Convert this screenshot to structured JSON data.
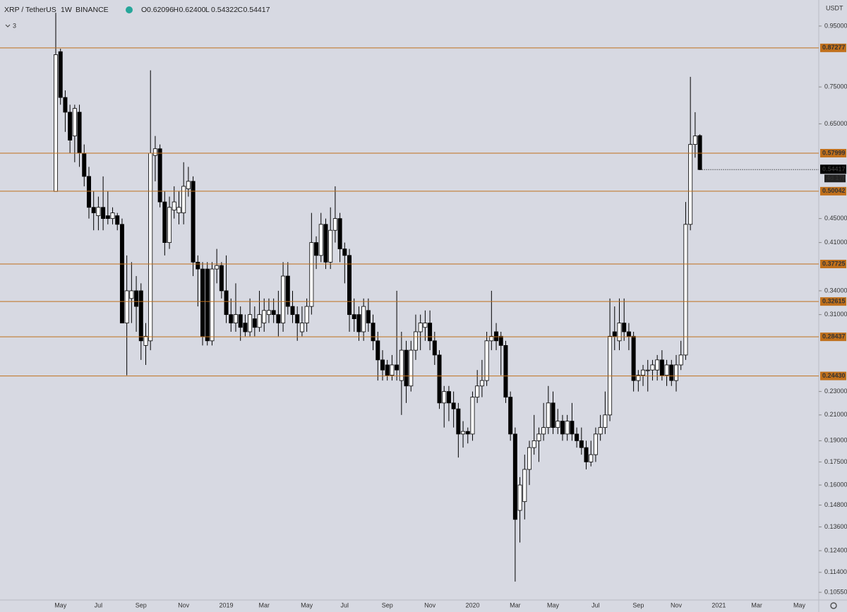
{
  "chart_data": {
    "type": "candlestick",
    "title": "XRP / TetherUS",
    "interval": "1W",
    "exchange": "BINANCE",
    "indicator_count": 3,
    "ohlc_labels": [
      "O",
      "H",
      "L",
      "C"
    ],
    "ohlc_value_labels": [
      "0.62096",
      "0.62400",
      "0.54322",
      "0.54417"
    ],
    "currency": "USDT",
    "countdown": "4d 17h",
    "log_scale": true,
    "up_color": "#ffffff",
    "down_color": "#000000",
    "level_color": "#c0701c",
    "ylim": [
      0.1024,
      1.051
    ],
    "yticks": [
      {
        "value": 0.95,
        "label": "0.95000"
      },
      {
        "value": 0.75,
        "label": "0.75000"
      },
      {
        "value": 0.65,
        "label": "0.65000"
      },
      {
        "value": 0.45,
        "label": "0.45000"
      },
      {
        "value": 0.41,
        "label": "0.41000"
      },
      {
        "value": 0.34,
        "label": "0.34000"
      },
      {
        "value": 0.31,
        "label": "0.31000"
      },
      {
        "value": 0.23,
        "label": "0.23000"
      },
      {
        "value": 0.21,
        "label": "0.21000"
      },
      {
        "value": 0.19,
        "label": "0.19000"
      },
      {
        "value": 0.175,
        "label": "0.17500"
      },
      {
        "value": 0.16,
        "label": "0.16000"
      },
      {
        "value": 0.148,
        "label": "0.14800"
      },
      {
        "value": 0.136,
        "label": "0.13600"
      },
      {
        "value": 0.124,
        "label": "0.12400"
      },
      {
        "value": 0.114,
        "label": "0.11400"
      },
      {
        "value": 0.1055,
        "label": "0.10550"
      }
    ],
    "levels": [
      0.87277,
      0.57999,
      0.50042,
      0.37725,
      0.32615,
      0.28437,
      {
        "value": 0.2443,
        "label": "0.24430"
      }
    ],
    "categories": [
      null,
      "May",
      null,
      null,
      null,
      null,
      null,
      null,
      null,
      "Jul",
      null,
      null,
      null,
      null,
      null,
      null,
      null,
      null,
      "Sep",
      null,
      null,
      null,
      null,
      null,
      null,
      null,
      null,
      "Nov",
      null,
      null,
      null,
      null,
      null,
      null,
      null,
      null,
      "2019",
      null,
      null,
      null,
      null,
      null,
      null,
      null,
      "Mar",
      null,
      null,
      null,
      null,
      null,
      null,
      null,
      null,
      "May",
      null,
      null,
      null,
      null,
      null,
      null,
      null,
      "Jul",
      null,
      null,
      null,
      null,
      null,
      null,
      null,
      null,
      "Sep",
      null,
      null,
      null,
      null,
      null,
      null,
      null,
      null,
      "Nov",
      null,
      null,
      null,
      null,
      null,
      null,
      null,
      null,
      "2020",
      null,
      null,
      null,
      null,
      null,
      null,
      null,
      null,
      "Mar",
      null,
      null,
      null,
      null,
      null,
      null,
      null,
      "May",
      null,
      null,
      null,
      null,
      null,
      null,
      null,
      null,
      "Jul",
      null,
      null,
      null,
      null,
      null,
      null,
      null,
      null,
      "Sep",
      null,
      null,
      null,
      null,
      null,
      null,
      null,
      "Nov",
      null,
      null,
      null,
      null,
      null,
      null,
      null,
      null,
      "2021",
      null,
      null,
      null,
      null,
      null,
      null,
      null,
      "Mar",
      null,
      null,
      null,
      null,
      null,
      null,
      null,
      null,
      "May",
      null,
      null
    ],
    "open": [
      0.5,
      0.86,
      0.72,
      0.68,
      0.62,
      0.68,
      0.58,
      0.53,
      0.47,
      0.455,
      0.47,
      0.455,
      0.45,
      0.455,
      0.44,
      0.3,
      0.33,
      0.34,
      0.34,
      0.275,
      0.28,
      0.575,
      0.59,
      0.48,
      0.41,
      0.465,
      0.46,
      0.46,
      0.505,
      0.52,
      0.38,
      0.37,
      0.37,
      0.28,
      0.37,
      0.375,
      0.34,
      0.31,
      0.3,
      0.31,
      0.3,
      0.29,
      0.305,
      0.295,
      0.3,
      0.31,
      0.315,
      0.31,
      0.3,
      0.36,
      0.32,
      0.31,
      0.29,
      0.3,
      0.32,
      0.41,
      0.39,
      0.44,
      0.38,
      0.43,
      0.45,
      0.4,
      0.39,
      0.31,
      0.31,
      0.29,
      0.315,
      0.3,
      0.28,
      0.26,
      0.255,
      0.245,
      0.255,
      0.24,
      0.27,
      0.235,
      0.27,
      0.29,
      0.295,
      0.3,
      0.28,
      0.265,
      0.22,
      0.23,
      0.22,
      0.215,
      0.195,
      0.197,
      0.195,
      0.225,
      0.235,
      0.24,
      0.28,
      0.29,
      0.285,
      0.275,
      0.225,
      0.195,
      0.145,
      0.15,
      0.17,
      0.185,
      0.19,
      0.195,
      0.2,
      0.22,
      0.2,
      0.205,
      0.195,
      0.205,
      0.195,
      0.19,
      0.185,
      0.175,
      0.18,
      0.195,
      0.2,
      0.21,
      0.29,
      0.28,
      0.3,
      0.29,
      0.285,
      0.24,
      0.245,
      0.25,
      0.25,
      0.25,
      0.26,
      0.245,
      0.255,
      0.24,
      0.255,
      0.265,
      0.44,
      0.6,
      0.62096,
      null,
      null,
      null,
      null,
      null,
      null,
      null,
      null,
      null,
      null,
      null,
      null,
      null,
      null,
      null,
      null,
      null,
      null,
      null,
      null,
      null,
      null,
      null
    ],
    "high": [
      1.0,
      0.87,
      0.74,
      0.7,
      0.7,
      0.7,
      0.6,
      0.55,
      0.5,
      0.49,
      0.53,
      0.5,
      0.47,
      0.46,
      0.45,
      0.39,
      0.38,
      0.36,
      0.35,
      0.3,
      0.8,
      0.62,
      0.6,
      0.5,
      0.49,
      0.51,
      0.5,
      0.56,
      0.55,
      0.53,
      0.39,
      0.38,
      0.38,
      0.38,
      0.4,
      0.38,
      0.39,
      0.33,
      0.35,
      0.32,
      0.31,
      0.33,
      0.32,
      0.34,
      0.33,
      0.33,
      0.33,
      0.34,
      0.38,
      0.38,
      0.34,
      0.32,
      0.32,
      0.33,
      0.46,
      0.42,
      0.46,
      0.45,
      0.47,
      0.51,
      0.46,
      0.41,
      0.4,
      0.33,
      0.32,
      0.33,
      0.33,
      0.31,
      0.29,
      0.27,
      0.26,
      0.265,
      0.34,
      0.29,
      0.28,
      0.28,
      0.31,
      0.31,
      0.315,
      0.315,
      0.29,
      0.27,
      0.235,
      0.235,
      0.23,
      0.22,
      0.205,
      0.2,
      0.23,
      0.25,
      0.26,
      0.29,
      0.34,
      0.3,
      0.29,
      0.28,
      0.23,
      0.2,
      0.165,
      0.18,
      0.19,
      0.21,
      0.2,
      0.22,
      0.235,
      0.23,
      0.215,
      0.21,
      0.21,
      0.22,
      0.2,
      0.2,
      0.19,
      0.19,
      0.2,
      0.21,
      0.23,
      0.33,
      0.32,
      0.33,
      0.33,
      0.3,
      0.29,
      0.25,
      0.255,
      0.26,
      0.26,
      0.265,
      0.27,
      0.26,
      0.26,
      0.265,
      0.28,
      0.48,
      0.78,
      0.68,
      0.624,
      null,
      null,
      null,
      null,
      null,
      null,
      null,
      null,
      null,
      null,
      null,
      null,
      null,
      null,
      null,
      null,
      null,
      null,
      null,
      null,
      null,
      null,
      null
    ],
    "low": [
      0.5,
      0.7,
      0.63,
      0.58,
      0.56,
      0.55,
      0.51,
      0.45,
      0.43,
      0.43,
      0.43,
      0.44,
      0.44,
      0.43,
      0.3,
      0.245,
      0.3,
      0.29,
      0.26,
      0.255,
      0.27,
      0.52,
      0.47,
      0.39,
      0.4,
      0.45,
      0.44,
      0.44,
      0.49,
      0.36,
      0.32,
      0.275,
      0.275,
      0.275,
      0.35,
      0.33,
      0.3,
      0.29,
      0.29,
      0.28,
      0.285,
      0.285,
      0.285,
      0.29,
      0.29,
      0.3,
      0.3,
      0.285,
      0.29,
      0.31,
      0.3,
      0.28,
      0.285,
      0.29,
      0.31,
      0.37,
      0.38,
      0.37,
      0.37,
      0.41,
      0.38,
      0.35,
      0.29,
      0.29,
      0.28,
      0.28,
      0.29,
      0.27,
      0.24,
      0.24,
      0.24,
      0.24,
      0.24,
      0.21,
      0.22,
      0.23,
      0.26,
      0.27,
      0.28,
      0.27,
      0.255,
      0.215,
      0.2,
      0.205,
      0.2,
      0.178,
      0.185,
      0.188,
      0.19,
      0.22,
      0.225,
      0.235,
      0.27,
      0.27,
      0.245,
      0.22,
      0.19,
      0.11,
      0.128,
      0.14,
      0.16,
      0.18,
      0.175,
      0.19,
      0.195,
      0.195,
      0.195,
      0.19,
      0.19,
      0.19,
      0.185,
      0.18,
      0.17,
      0.172,
      0.175,
      0.19,
      0.195,
      0.205,
      0.27,
      0.27,
      0.28,
      0.27,
      0.23,
      0.23,
      0.235,
      0.23,
      0.24,
      0.24,
      0.24,
      0.235,
      0.235,
      0.23,
      0.25,
      0.26,
      0.43,
      0.57,
      0.54322,
      null,
      null,
      null,
      null,
      null,
      null,
      null,
      null,
      null,
      null,
      null,
      null,
      null,
      null,
      null,
      null,
      null,
      null,
      null,
      null,
      null,
      null,
      null
    ],
    "close": [
      0.85,
      0.72,
      0.68,
      0.61,
      0.69,
      0.58,
      0.53,
      0.47,
      0.46,
      0.47,
      0.45,
      0.45,
      0.46,
      0.44,
      0.3,
      0.34,
      0.34,
      0.32,
      0.28,
      0.285,
      0.58,
      0.59,
      0.48,
      0.41,
      0.47,
      0.48,
      0.47,
      0.51,
      0.52,
      0.38,
      0.37,
      0.285,
      0.28,
      0.37,
      0.375,
      0.34,
      0.31,
      0.3,
      0.31,
      0.295,
      0.29,
      0.31,
      0.295,
      0.31,
      0.315,
      0.315,
      0.31,
      0.3,
      0.36,
      0.32,
      0.31,
      0.3,
      0.3,
      0.32,
      0.41,
      0.39,
      0.44,
      0.38,
      0.43,
      0.45,
      0.4,
      0.39,
      0.31,
      0.305,
      0.29,
      0.32,
      0.3,
      0.28,
      0.26,
      0.25,
      0.245,
      0.255,
      0.25,
      0.27,
      0.235,
      0.27,
      0.29,
      0.3,
      0.3,
      0.28,
      0.265,
      0.22,
      0.23,
      0.22,
      0.215,
      0.195,
      0.197,
      0.195,
      0.225,
      0.235,
      0.24,
      0.28,
      0.285,
      0.28,
      0.275,
      0.225,
      0.195,
      0.14,
      0.16,
      0.17,
      0.185,
      0.19,
      0.195,
      0.2,
      0.22,
      0.2,
      0.205,
      0.195,
      0.205,
      0.195,
      0.19,
      0.185,
      0.175,
      0.18,
      0.195,
      0.2,
      0.21,
      0.285,
      0.285,
      0.3,
      0.29,
      0.285,
      0.24,
      0.245,
      0.25,
      0.25,
      0.255,
      0.26,
      0.245,
      0.255,
      0.24,
      0.255,
      0.265,
      0.44,
      0.6,
      0.62,
      0.54417,
      null,
      null,
      null,
      null,
      null,
      null,
      null,
      null,
      null,
      null,
      null,
      null,
      null,
      null,
      null,
      null,
      null,
      null,
      null,
      null,
      null,
      null,
      null
    ]
  }
}
